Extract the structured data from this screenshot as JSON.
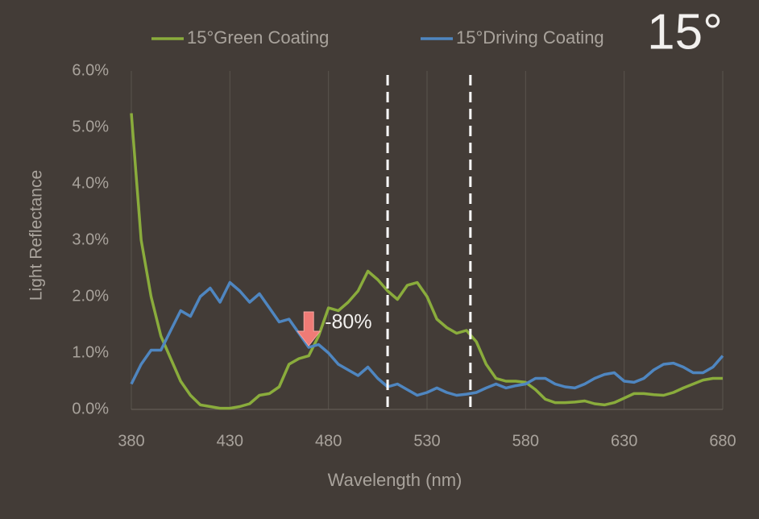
{
  "chart_data": {
    "type": "line",
    "title": "15°",
    "xlabel": "Wavelength (nm)",
    "ylabel": "Light Reflectance",
    "x": [
      380,
      385,
      390,
      395,
      400,
      405,
      410,
      415,
      420,
      425,
      430,
      435,
      440,
      445,
      450,
      455,
      460,
      465,
      470,
      475,
      480,
      485,
      490,
      495,
      500,
      505,
      510,
      515,
      520,
      525,
      530,
      535,
      540,
      545,
      550,
      555,
      560,
      565,
      570,
      575,
      580,
      585,
      590,
      595,
      600,
      605,
      610,
      615,
      620,
      625,
      630,
      635,
      640,
      645,
      650,
      655,
      660,
      665,
      670,
      675,
      680
    ],
    "series": [
      {
        "name": "15°Green Coating",
        "color": "#8aac3c",
        "values": [
          5.25,
          3.0,
          2.0,
          1.3,
          0.9,
          0.5,
          0.25,
          0.08,
          0.05,
          0.02,
          0.02,
          0.05,
          0.1,
          0.25,
          0.28,
          0.4,
          0.8,
          0.9,
          0.95,
          1.3,
          1.8,
          1.75,
          1.9,
          2.1,
          2.45,
          2.3,
          2.1,
          1.95,
          2.2,
          2.25,
          2.0,
          1.6,
          1.45,
          1.35,
          1.4,
          1.2,
          0.8,
          0.55,
          0.5,
          0.5,
          0.48,
          0.35,
          0.18,
          0.12,
          0.12,
          0.13,
          0.15,
          0.1,
          0.08,
          0.12,
          0.2,
          0.28,
          0.28,
          0.26,
          0.25,
          0.3,
          0.38,
          0.45,
          0.52,
          0.55,
          0.55
        ]
      },
      {
        "name": "15°Driving Coating",
        "color": "#4f86c0",
        "values": [
          0.45,
          0.8,
          1.05,
          1.05,
          1.4,
          1.75,
          1.65,
          2.0,
          2.15,
          1.9,
          2.25,
          2.1,
          1.9,
          2.05,
          1.8,
          1.55,
          1.6,
          1.35,
          1.1,
          1.15,
          1.0,
          0.8,
          0.7,
          0.6,
          0.75,
          0.55,
          0.4,
          0.45,
          0.35,
          0.25,
          0.3,
          0.38,
          0.3,
          0.25,
          0.27,
          0.3,
          0.38,
          0.45,
          0.38,
          0.42,
          0.45,
          0.55,
          0.55,
          0.45,
          0.4,
          0.38,
          0.45,
          0.55,
          0.62,
          0.65,
          0.5,
          0.48,
          0.55,
          0.7,
          0.8,
          0.82,
          0.75,
          0.65,
          0.65,
          0.75,
          0.95
        ]
      }
    ],
    "xlim": [
      380,
      680
    ],
    "xticks": [
      380,
      430,
      480,
      530,
      580,
      630,
      680
    ],
    "ylim": [
      0,
      6
    ],
    "yticks": [
      {
        "value": 0,
        "label": "0.0%"
      },
      {
        "value": 1,
        "label": "1.0%"
      },
      {
        "value": 2,
        "label": "2.0%"
      },
      {
        "value": 3,
        "label": "3.0%"
      },
      {
        "value": 4,
        "label": "4.0%"
      },
      {
        "value": 5,
        "label": "5.0%"
      },
      {
        "value": 6,
        "label": "6.0%"
      }
    ],
    "grid": true,
    "reference_lines": [
      510,
      552
    ],
    "annotation": {
      "text": "-80%",
      "x": 470,
      "y": 1.1
    }
  }
}
